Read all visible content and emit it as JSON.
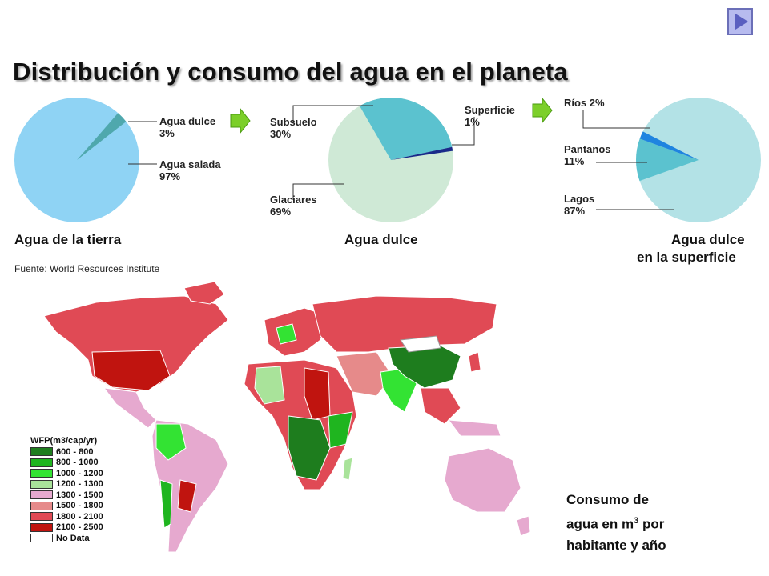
{
  "title": "Distribución y consumo del agua en el planeta",
  "nav_icon": "next-slide-triangle",
  "colors": {
    "ocean_blue": "#8fd3f4",
    "teal": "#5bc2cf",
    "pale_green": "#cfe9d6",
    "dark_blue": "#1a2a8a",
    "pale_blue": "#b3e2e6",
    "arrow_green": "#7ccf2a"
  },
  "pie1": {
    "caption": "Agua de la tierra",
    "slices": [
      {
        "label": "Agua dulce",
        "pct": "3%",
        "value": 3,
        "color": "#4fa8ad"
      },
      {
        "label": "Agua salada",
        "pct": "97%",
        "value": 97,
        "color": "#8fd3f4"
      }
    ]
  },
  "pie2": {
    "caption": "Agua dulce",
    "slices": [
      {
        "label": "Subsuelo",
        "pct": "30%",
        "value": 30,
        "color": "#5bc2cf"
      },
      {
        "label": "Superficie",
        "pct": "1%",
        "value": 1,
        "color": "#1a2a8a"
      },
      {
        "label": "Glaciares",
        "pct": "69%",
        "value": 69,
        "color": "#cfe9d6"
      }
    ]
  },
  "pie3": {
    "caption_line1": "Agua dulce",
    "caption_line2": "en la superficie",
    "slices": [
      {
        "label": "Ríos",
        "pct": "2%",
        "value": 2,
        "color": "#1f84e0"
      },
      {
        "label": "Pantanos",
        "pct": "11%",
        "value": 11,
        "color": "#5bc2cf"
      },
      {
        "label": "Lagos",
        "pct": "87%",
        "value": 87,
        "color": "#b3e2e6"
      }
    ]
  },
  "source": "Fuente: World Resources Institute",
  "map": {
    "legend_title": "WFP(m3/cap/yr)",
    "legend": [
      {
        "range": "600 - 800",
        "color": "#1e7d1e"
      },
      {
        "range": "800 - 1000",
        "color": "#1fb51f"
      },
      {
        "range": "1000 - 1200",
        "color": "#33e333"
      },
      {
        "range": "1200 - 1300",
        "color": "#a9e39a"
      },
      {
        "range": "1300 - 1500",
        "color": "#e6a9cf"
      },
      {
        "range": "1500 - 1800",
        "color": "#e68a8a"
      },
      {
        "range": "1800 - 2100",
        "color": "#e04a55"
      },
      {
        "range": "2100 - 2500",
        "color": "#c0140f"
      },
      {
        "range": "No Data",
        "color": "#ffffff"
      }
    ]
  },
  "consumo": {
    "line1": "Consumo de",
    "line2_pre": "agua en m",
    "line2_sup": "3",
    "line2_post": " por",
    "line3": "habitante y año"
  }
}
